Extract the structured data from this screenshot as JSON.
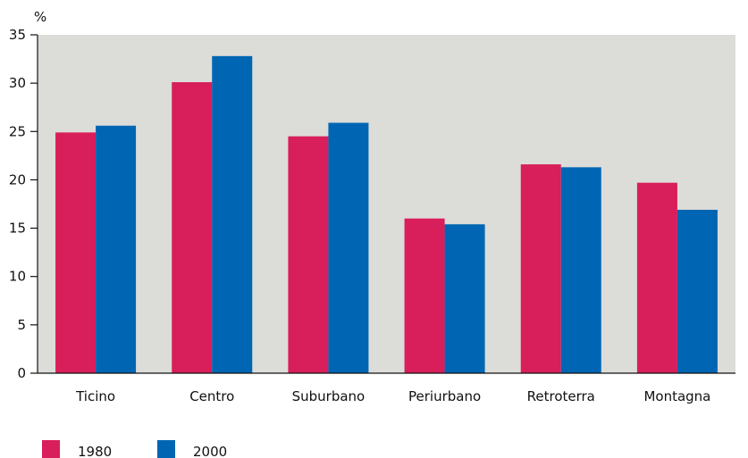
{
  "chart_data": {
    "type": "bar",
    "ylabel": "%",
    "ylim": [
      0,
      35
    ],
    "yticks": [
      0,
      5,
      10,
      15,
      20,
      25,
      30,
      35
    ],
    "grid": false,
    "legend_position": "bottom-left",
    "plot_background": "#dcdcd8",
    "categories": [
      "Ticino",
      "Centro",
      "Suburbano",
      "Periurbano",
      "Retroterra",
      "Montagna"
    ],
    "series": [
      {
        "name": "1980",
        "color": "#d81e5b",
        "values": [
          24.9,
          30.1,
          24.5,
          16.0,
          21.6,
          19.7
        ]
      },
      {
        "name": "2000",
        "color": "#0066b3",
        "values": [
          25.6,
          32.8,
          25.9,
          15.4,
          21.3,
          16.9
        ]
      }
    ]
  }
}
